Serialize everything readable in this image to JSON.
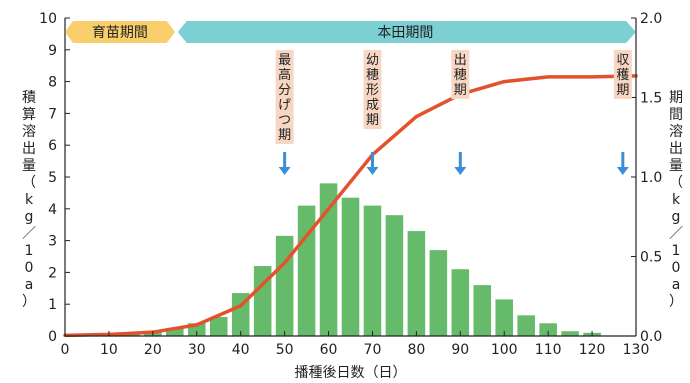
{
  "chart_data": {
    "type": "bar",
    "xlabel": "播種後日数（日）",
    "ylabel_left": "積算溶出量（kg／10a）",
    "ylabel_right": "期間溶出量（kg／10a）",
    "x_ticks": [
      0,
      10,
      20,
      30,
      40,
      50,
      60,
      70,
      80,
      90,
      100,
      110,
      120,
      130
    ],
    "xlim": [
      0,
      130
    ],
    "ylim_left": [
      0,
      10
    ],
    "y_ticks_left": [
      0,
      1,
      2,
      3,
      4,
      5,
      6,
      7,
      8,
      9,
      10
    ],
    "ylim_right": [
      0,
      2.0
    ],
    "y_ticks_right": [
      "0.0",
      "0.5",
      "1.0",
      "1.5",
      "2.0"
    ],
    "bars": {
      "x": [
        5,
        10,
        15,
        20,
        25,
        30,
        35,
        40,
        45,
        50,
        55,
        60,
        65,
        70,
        75,
        80,
        85,
        90,
        95,
        100,
        105,
        110,
        115,
        120
      ],
      "values": [
        0.01,
        0.015,
        0.02,
        0.03,
        0.05,
        0.08,
        0.12,
        0.27,
        0.44,
        0.63,
        0.82,
        0.96,
        0.87,
        0.82,
        0.76,
        0.66,
        0.54,
        0.42,
        0.32,
        0.23,
        0.13,
        0.08,
        0.03,
        0.02
      ],
      "color": "#66bb6a",
      "axis": "right"
    },
    "line": {
      "x": [
        0,
        10,
        20,
        30,
        40,
        50,
        60,
        70,
        80,
        90,
        100,
        110,
        120,
        130
      ],
      "y": [
        0.02,
        0.05,
        0.12,
        0.35,
        0.95,
        2.3,
        4.0,
        5.7,
        6.9,
        7.6,
        8.0,
        8.15,
        8.15,
        8.18
      ],
      "color": "#e2532d",
      "axis": "left"
    },
    "stages": [
      {
        "label": "育苗期間",
        "x_start": 0,
        "x_end": 25,
        "color": "#f8cf6a"
      },
      {
        "label": "本田期間",
        "x_start": 25,
        "x_end": 130,
        "color": "#7ccfd2"
      }
    ],
    "annotations": [
      {
        "label": "最高分げつ期",
        "x": 50
      },
      {
        "label": "幼穂形成期",
        "x": 70
      },
      {
        "label": "出穂期",
        "x": 90
      },
      {
        "label": "収穫期",
        "x": 127
      }
    ],
    "colors": {
      "annotation_bg": "#f7d7c4",
      "arrow": "#3b8fd9"
    }
  }
}
